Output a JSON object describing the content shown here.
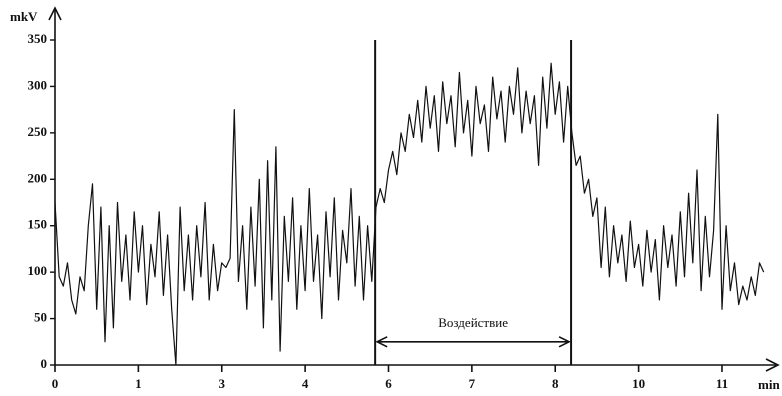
{
  "chart_data": {
    "type": "line",
    "y_label": "mkV",
    "x_label": "min",
    "ylim": [
      0,
      350
    ],
    "yticks": [
      0,
      50,
      100,
      150,
      200,
      250,
      300,
      350
    ],
    "xlim": [
      0,
      8.6
    ],
    "xticks": [
      {
        "value": 0,
        "label": "0"
      },
      {
        "value": 1,
        "label": "1"
      },
      {
        "value": 2,
        "label": "3"
      },
      {
        "value": 3,
        "label": "4"
      },
      {
        "value": 4,
        "label": "6"
      },
      {
        "value": 5,
        "label": "7"
      },
      {
        "value": 6,
        "label": "8"
      },
      {
        "value": 7,
        "label": "10"
      },
      {
        "value": 8,
        "label": "11"
      }
    ],
    "vlines": [
      3.84,
      6.19
    ],
    "annotation": {
      "text": "Воздействие",
      "x": [
        3.84,
        6.19
      ],
      "y": 25
    },
    "x": [
      0,
      0.05,
      0.1,
      0.15,
      0.2,
      0.25,
      0.3,
      0.35,
      0.4,
      0.45,
      0.5,
      0.55,
      0.6,
      0.65,
      0.7,
      0.75,
      0.8,
      0.85,
      0.9,
      0.95,
      1,
      1.05,
      1.1,
      1.15,
      1.2,
      1.25,
      1.3,
      1.35,
      1.4,
      1.45,
      1.5,
      1.55,
      1.6,
      1.65,
      1.7,
      1.75,
      1.8,
      1.85,
      1.9,
      1.95,
      2,
      2.05,
      2.1,
      2.15,
      2.2,
      2.25,
      2.3,
      2.35,
      2.4,
      2.45,
      2.5,
      2.55,
      2.6,
      2.65,
      2.7,
      2.75,
      2.8,
      2.85,
      2.9,
      2.95,
      3,
      3.05,
      3.1,
      3.15,
      3.2,
      3.25,
      3.3,
      3.35,
      3.4,
      3.45,
      3.5,
      3.55,
      3.6,
      3.65,
      3.7,
      3.75,
      3.8,
      3.85,
      3.9,
      3.95,
      4,
      4.05,
      4.1,
      4.15,
      4.2,
      4.25,
      4.3,
      4.35,
      4.4,
      4.45,
      4.5,
      4.55,
      4.6,
      4.65,
      4.7,
      4.75,
      4.8,
      4.85,
      4.9,
      4.95,
      5,
      5.05,
      5.1,
      5.15,
      5.2,
      5.25,
      5.3,
      5.35,
      5.4,
      5.45,
      5.5,
      5.55,
      5.6,
      5.65,
      5.7,
      5.75,
      5.8,
      5.85,
      5.9,
      5.95,
      6,
      6.05,
      6.1,
      6.15,
      6.2,
      6.25,
      6.3,
      6.35,
      6.4,
      6.45,
      6.5,
      6.55,
      6.6,
      6.65,
      6.7,
      6.75,
      6.8,
      6.85,
      6.9,
      6.95,
      7,
      7.05,
      7.1,
      7.15,
      7.2,
      7.25,
      7.3,
      7.35,
      7.4,
      7.45,
      7.5,
      7.55,
      7.6,
      7.65,
      7.7,
      7.75,
      7.8,
      7.85,
      7.9,
      7.95,
      8,
      8.05,
      8.1,
      8.15,
      8.2,
      8.25,
      8.3,
      8.35,
      8.4,
      8.45,
      8.5
    ],
    "series": [
      {
        "color": "#111111",
        "values": [
          175,
          95,
          85,
          110,
          70,
          55,
          95,
          80,
          150,
          195,
          60,
          170,
          25,
          150,
          40,
          175,
          90,
          140,
          70,
          165,
          100,
          150,
          65,
          130,
          95,
          165,
          75,
          140,
          60,
          0,
          170,
          80,
          140,
          70,
          150,
          95,
          175,
          70,
          130,
          80,
          110,
          105,
          115,
          275,
          90,
          150,
          60,
          170,
          85,
          200,
          40,
          220,
          70,
          235,
          15,
          160,
          90,
          180,
          60,
          150,
          80,
          190,
          90,
          140,
          50,
          165,
          95,
          180,
          70,
          145,
          110,
          190,
          85,
          160,
          70,
          150,
          90,
          170,
          190,
          175,
          210,
          230,
          205,
          250,
          230,
          270,
          245,
          285,
          240,
          300,
          255,
          290,
          230,
          305,
          260,
          290,
          235,
          315,
          250,
          285,
          225,
          300,
          260,
          280,
          230,
          310,
          265,
          295,
          240,
          300,
          270,
          320,
          250,
          295,
          260,
          290,
          215,
          310,
          255,
          325,
          270,
          305,
          240,
          300,
          250,
          215,
          225,
          185,
          200,
          160,
          180,
          105,
          170,
          95,
          150,
          110,
          140,
          90,
          155,
          105,
          130,
          85,
          145,
          100,
          135,
          70,
          150,
          105,
          140,
          85,
          165,
          95,
          185,
          110,
          210,
          80,
          160,
          95,
          145,
          270,
          60,
          150,
          80,
          110,
          65,
          85,
          70,
          95,
          75,
          110,
          100
        ]
      }
    ]
  }
}
